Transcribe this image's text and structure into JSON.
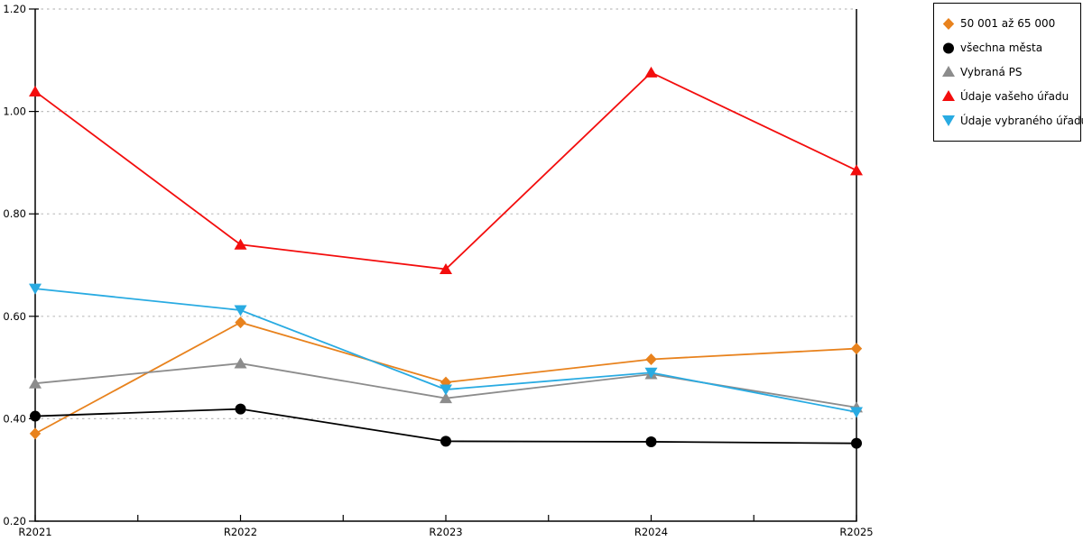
{
  "chart_data": {
    "type": "line",
    "title": "",
    "xlabel": "",
    "ylabel": "",
    "categories": [
      "R2021",
      "R2022",
      "R2023",
      "R2024",
      "R2025"
    ],
    "series": [
      {
        "name": "50 001 až 65 000",
        "marker": "diamond",
        "color": "#e8821d",
        "values": [
          0.371,
          0.588,
          0.471,
          0.516,
          0.537
        ]
      },
      {
        "name": "všechna města",
        "marker": "circle",
        "color": "#000000",
        "values": [
          0.405,
          0.419,
          0.356,
          0.355,
          0.352
        ]
      },
      {
        "name": "Vybraná PS",
        "marker": "triangle-up",
        "color": "#8c8c8c",
        "values": [
          0.469,
          0.508,
          0.44,
          0.487,
          0.422
        ]
      },
      {
        "name": "Údaje vašeho úřadu",
        "marker": "triangle-up",
        "color": "#f30d0d",
        "values": [
          1.039,
          0.74,
          0.692,
          1.076,
          0.885
        ]
      },
      {
        "name": "Údaje vybraného úřadu",
        "marker": "triangle-down",
        "color": "#29abe2",
        "values": [
          0.654,
          0.612,
          0.457,
          0.49,
          0.413
        ]
      }
    ],
    "ylim": [
      0.2,
      1.2
    ],
    "yticks": [
      0.2,
      0.4,
      0.6,
      0.8,
      1.0,
      1.2
    ],
    "ytick_labels": [
      "0.20",
      "0.40",
      "0.60",
      "0.80",
      "1.00",
      "1.20"
    ],
    "grid": "horizontal-dotted-at-yticks-above-min",
    "grid_color": "#bdbdbd",
    "axis_color": "#000000",
    "legend_position": "outside-top-right",
    "x_minor_ticks": "midpoints-between-categories"
  }
}
